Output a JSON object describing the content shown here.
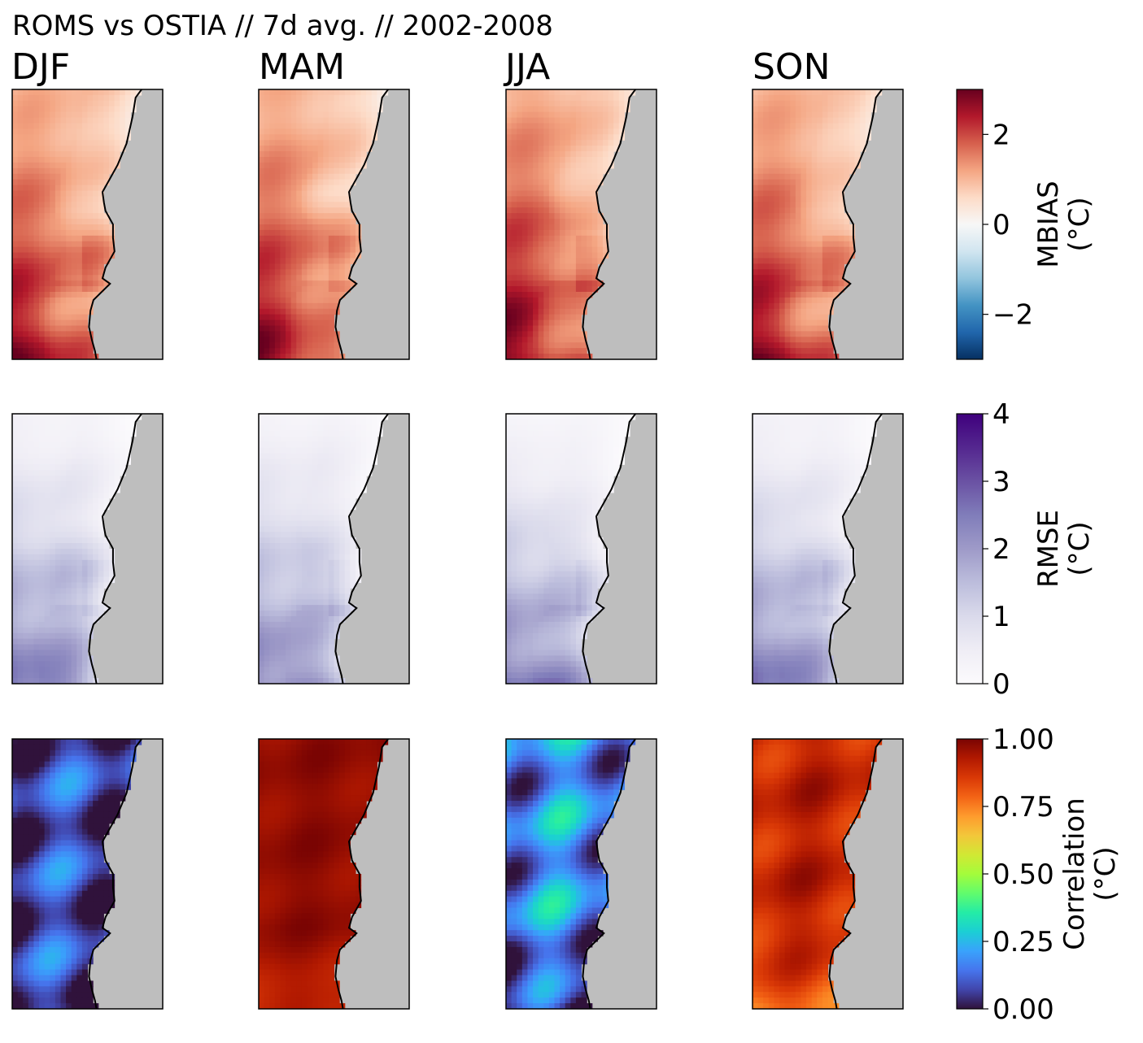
{
  "title": "ROMS vs OSTIA // 7d avg. // 2002-2008",
  "seasons": [
    "DJF",
    "MAM",
    "JJA",
    "SON"
  ],
  "colors": {
    "land": "#bebebe",
    "coast": "#000000",
    "frame": "#000000"
  },
  "chart_data": [
    {
      "type": "heatmap",
      "metric": "MBIAS",
      "colorbar_label": "MBIAS",
      "colorbar_unit": "(°C)",
      "colormap": "RdBu_r",
      "vmin": -3,
      "vmax": 3,
      "ticks": [
        -2,
        0,
        2
      ],
      "tick_labels": [
        "−2",
        "0",
        "2"
      ],
      "panels": [
        {
          "season": "DJF",
          "offset": 0.0,
          "north": 1.0,
          "south": 2.6
        },
        {
          "season": "MAM",
          "offset": 0.0,
          "north": 1.0,
          "south": 2.6
        },
        {
          "season": "JJA",
          "offset": 0.1,
          "north": 1.1,
          "south": 2.7
        },
        {
          "season": "SON",
          "offset": 0.0,
          "north": 1.0,
          "south": 2.6
        }
      ]
    },
    {
      "type": "heatmap",
      "metric": "RMSE",
      "colorbar_label": "RMSE",
      "colorbar_unit": "(°C)",
      "colormap": "Purples",
      "vmin": 0,
      "vmax": 4,
      "ticks": [
        0,
        1,
        2,
        3,
        4
      ],
      "tick_labels": [
        "0",
        "1",
        "2",
        "3",
        "4"
      ],
      "panels": [
        {
          "season": "DJF",
          "offset": 0.0,
          "north": 0.3,
          "south": 2.6
        },
        {
          "season": "MAM",
          "offset": 0.0,
          "north": 0.3,
          "south": 2.5
        },
        {
          "season": "JJA",
          "offset": 0.0,
          "north": 0.2,
          "south": 2.6
        },
        {
          "season": "SON",
          "offset": 0.0,
          "north": 0.3,
          "south": 2.6
        }
      ]
    },
    {
      "type": "heatmap",
      "metric": "Correlation",
      "colorbar_label": "Correlation",
      "colorbar_unit": "(°C)",
      "colormap": "turbo",
      "vmin": 0,
      "vmax": 1,
      "ticks": [
        0,
        0.25,
        0.5,
        0.75,
        1.0
      ],
      "tick_labels": [
        "0.00",
        "0.25",
        "0.50",
        "0.75",
        "1.00"
      ],
      "panels": [
        {
          "season": "DJF",
          "mean": 0.08,
          "spread": 0.1,
          "south": 0.08
        },
        {
          "season": "MAM",
          "mean": 0.97,
          "spread": 0.02,
          "south": 0.9
        },
        {
          "season": "JJA",
          "mean": 0.18,
          "spread": 0.12,
          "south": 0.04
        },
        {
          "season": "SON",
          "mean": 0.9,
          "spread": 0.05,
          "south": 0.8
        }
      ]
    }
  ]
}
